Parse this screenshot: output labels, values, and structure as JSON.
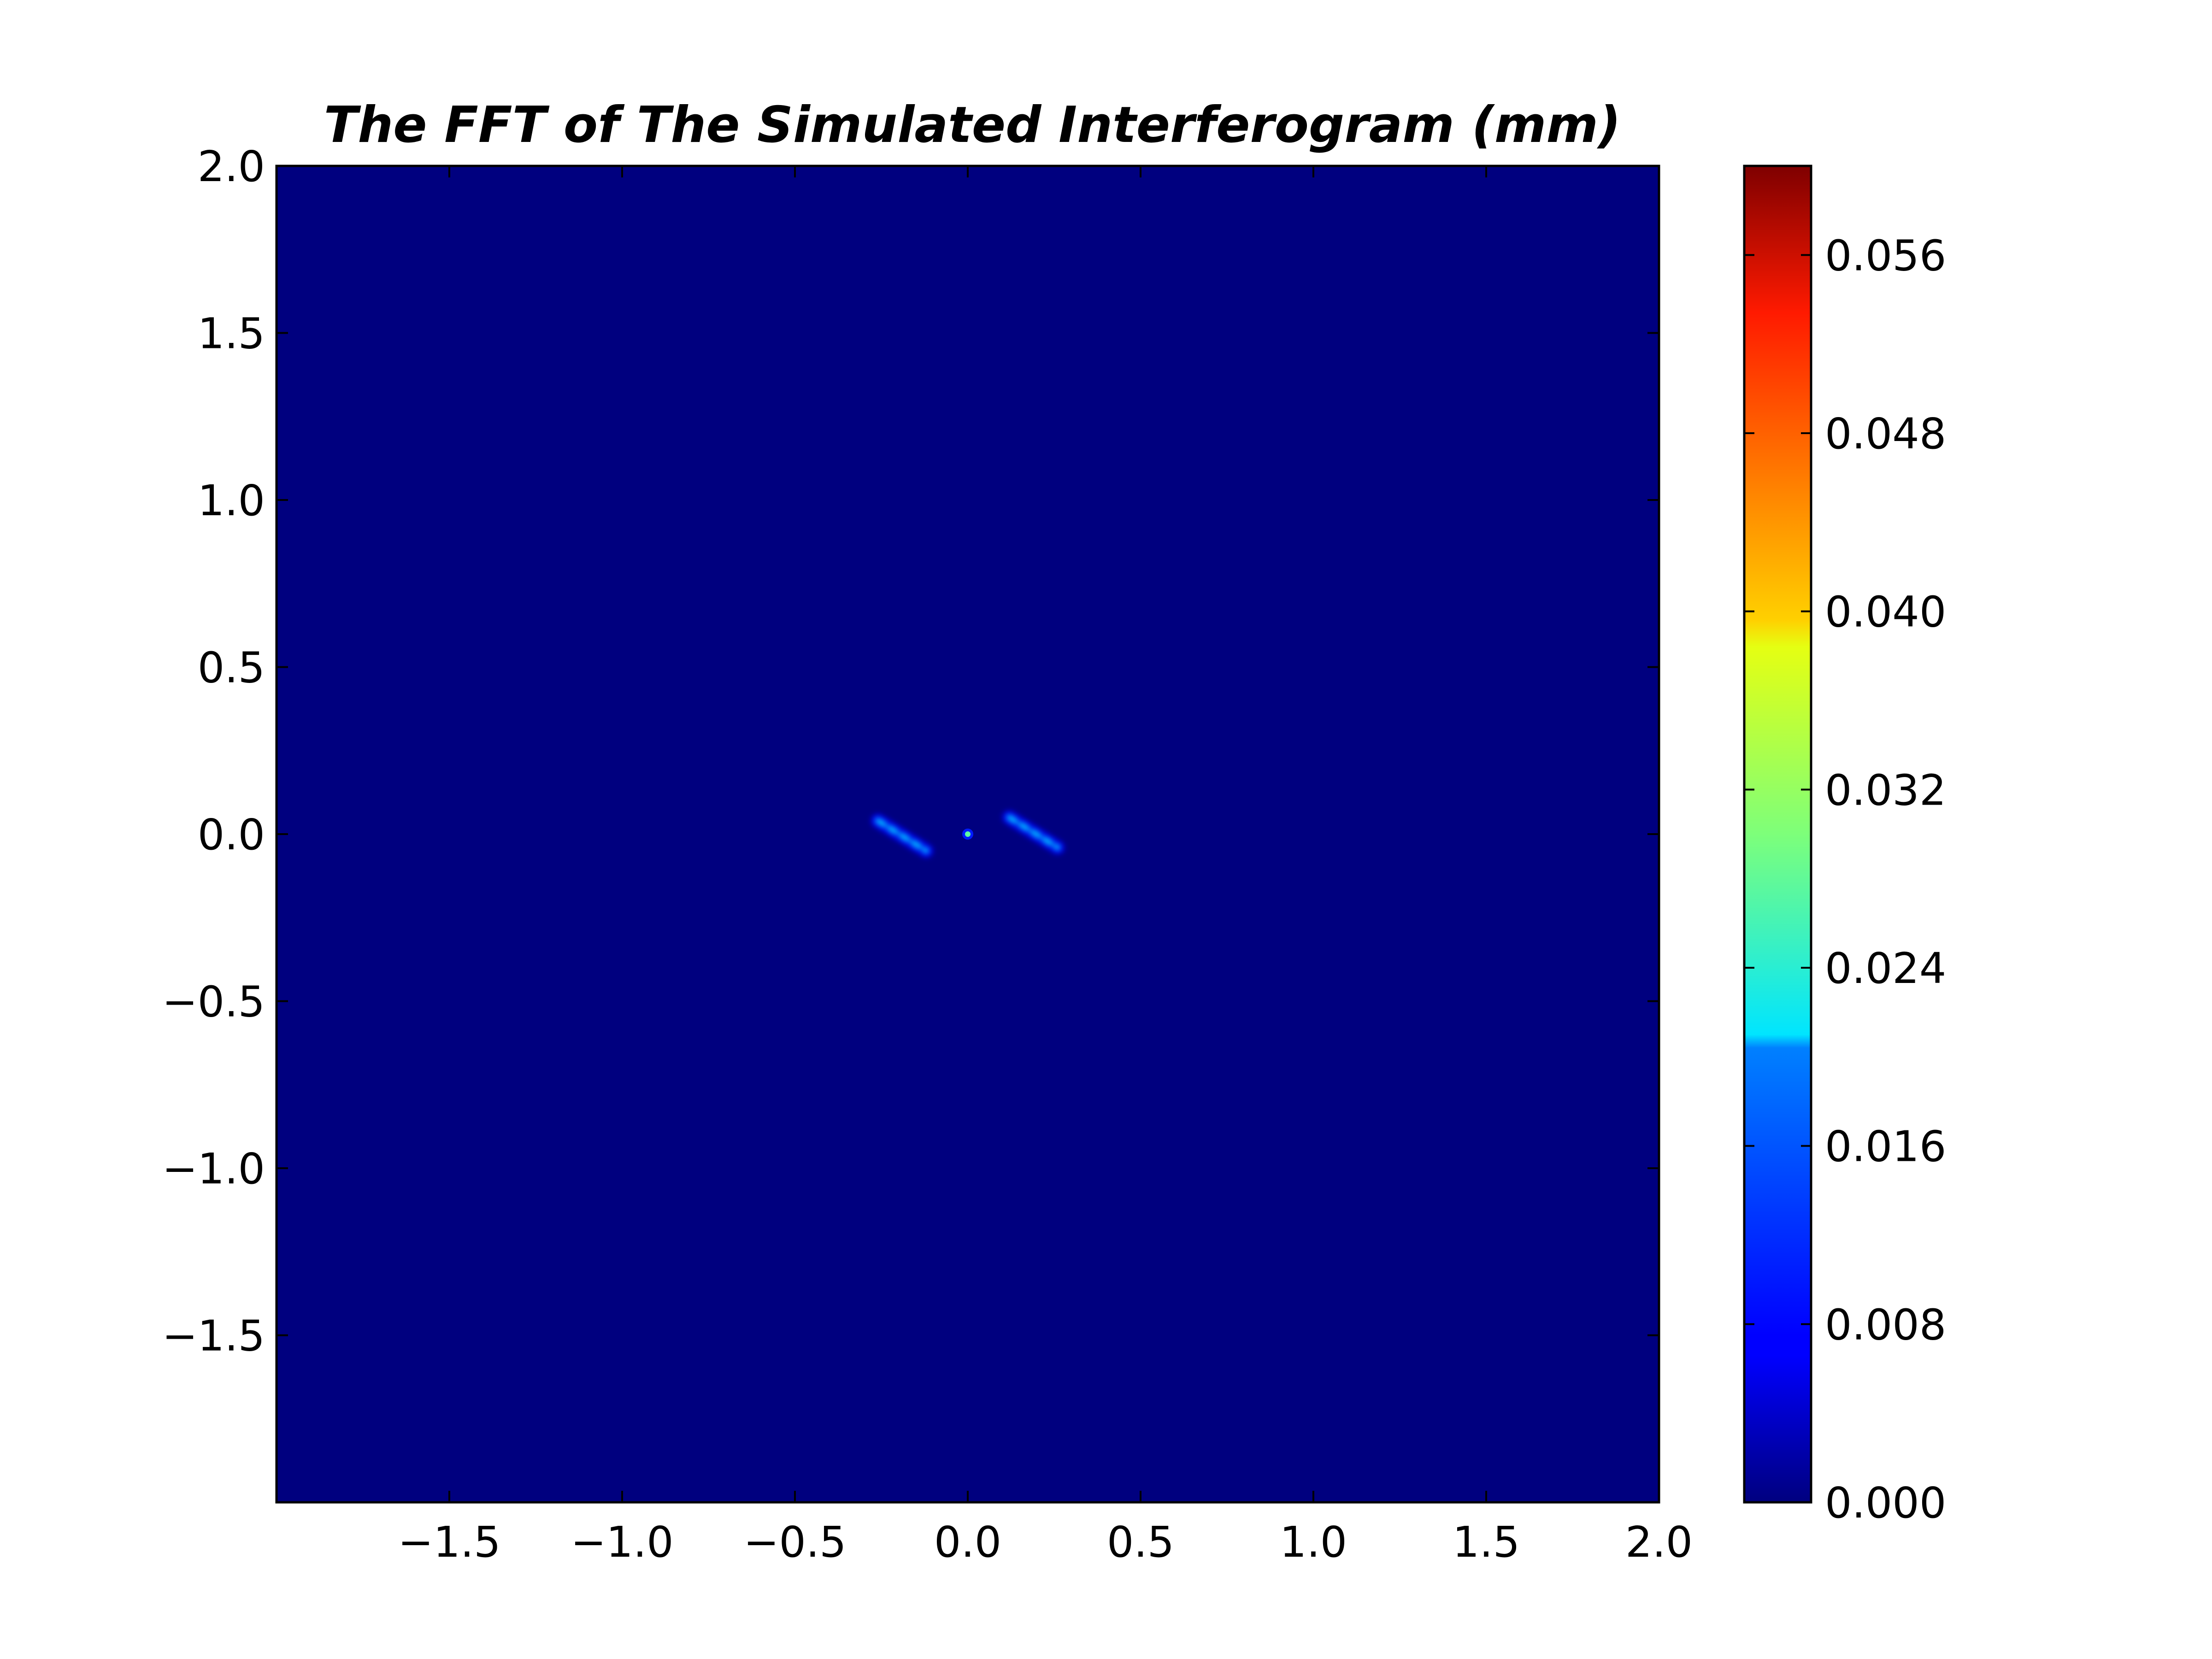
{
  "chart_data": {
    "type": "heatmap",
    "title": "The FFT of The Simulated Interferogram (mm)",
    "xlabel": "",
    "ylabel": "",
    "xlim": [
      -2.0,
      2.0
    ],
    "ylim": [
      -2.0,
      2.0
    ],
    "x_ticks": [
      -1.5,
      -1.0,
      -0.5,
      0.0,
      0.5,
      1.0,
      1.5,
      2.0
    ],
    "x_tick_labels": [
      "−1.5",
      "−1.0",
      "−0.5",
      "0.0",
      "0.5",
      "1.0",
      "1.5",
      "2.0"
    ],
    "y_ticks": [
      2.0,
      1.5,
      1.0,
      0.5,
      0.0,
      -0.5,
      -1.0,
      -1.5
    ],
    "y_tick_labels": [
      "2.0",
      "1.5",
      "1.0",
      "0.5",
      "0.0",
      "−0.5",
      "−1.0",
      "−1.5"
    ],
    "grid": false,
    "colormap": "jet",
    "background_color": "#00007f",
    "colorbar": {
      "range": [
        0.0,
        0.06
      ],
      "ticks": [
        0.0,
        0.008,
        0.016,
        0.024,
        0.032,
        0.04,
        0.048,
        0.056
      ],
      "tick_labels": [
        "0.000",
        "0.008",
        "0.016",
        "0.024",
        "0.032",
        "0.040",
        "0.048",
        "0.056"
      ]
    },
    "features": [
      {
        "kind": "streak",
        "from": [
          -0.26,
          0.04
        ],
        "to": [
          -0.12,
          -0.05
        ],
        "peak_value": 0.02
      },
      {
        "kind": "streak",
        "from": [
          0.12,
          0.05
        ],
        "to": [
          0.26,
          -0.04
        ],
        "peak_value": 0.02
      },
      {
        "kind": "spot",
        "at": [
          0.0,
          0.0
        ],
        "peak_value": 0.028
      }
    ]
  }
}
